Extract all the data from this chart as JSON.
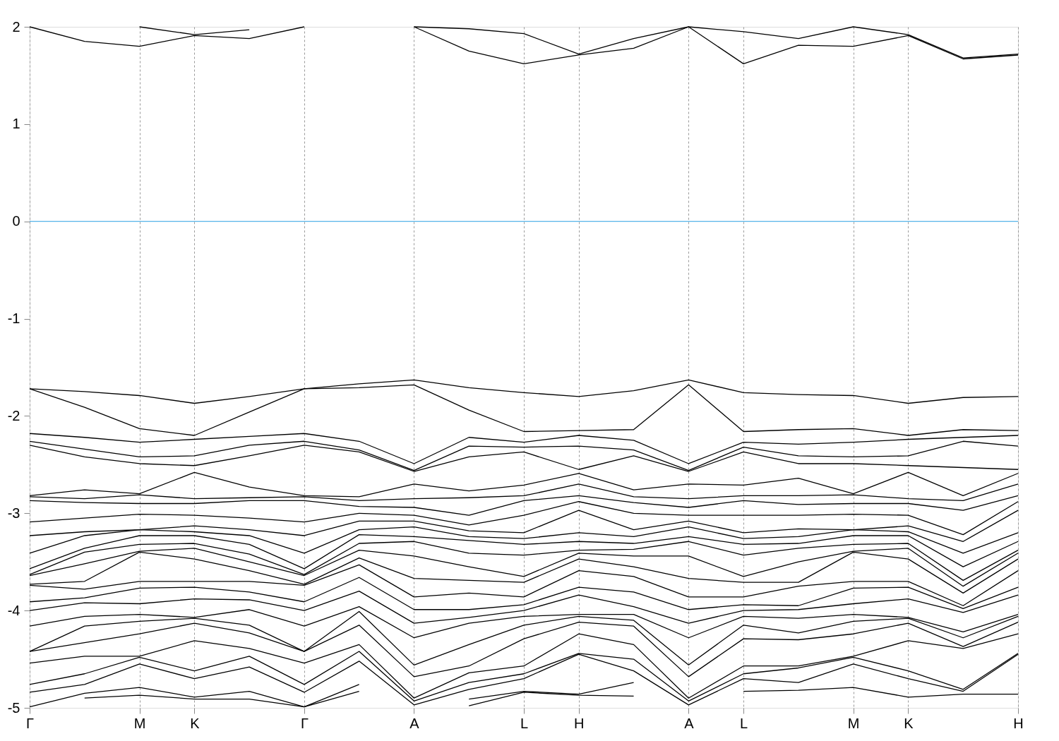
{
  "chart_data": {
    "type": "line",
    "categories": [
      "Γ",
      null,
      "M",
      "K",
      null,
      "Γ",
      null,
      "A",
      null,
      "L",
      "H",
      null,
      "A",
      "L",
      null,
      "M",
      "K",
      null,
      "H"
    ],
    "ylim": [
      -5,
      2
    ],
    "yticks": [
      -5,
      -4,
      -3,
      -2,
      -1,
      0,
      1,
      2
    ],
    "grid": "x",
    "marker": "none",
    "line_style": "solid",
    "legend": false,
    "ref_lines": [
      {
        "axis": "y",
        "value": 0,
        "color": "#56b4e9"
      }
    ],
    "series": [
      {
        "color": "#000000",
        "values": [
          2.0,
          1.85,
          1.8,
          1.91,
          1.88,
          2.0,
          null,
          2.0,
          1.75,
          1.62,
          1.71,
          1.78,
          2.0,
          1.62,
          1.81,
          1.8,
          1.91,
          1.67,
          1.71
        ]
      },
      {
        "color": "#000000",
        "values": [
          null,
          null,
          2.0,
          1.92,
          1.97,
          null,
          null,
          2.0,
          1.98,
          1.93,
          1.72,
          1.88,
          2.0,
          1.95,
          1.88,
          2.0,
          1.92,
          1.68,
          1.72
        ]
      },
      {
        "color": "#000000",
        "values": [
          -1.72,
          -1.75,
          -1.79,
          -1.87,
          -1.8,
          -1.72,
          -1.67,
          -1.63,
          -1.71,
          -1.76,
          -1.8,
          -1.74,
          -1.63,
          -1.76,
          -1.78,
          -1.79,
          -1.87,
          -1.81,
          -1.8
        ]
      },
      {
        "color": "#000000",
        "values": [
          -1.72,
          -1.91,
          -2.13,
          -2.2,
          -1.96,
          -1.72,
          -1.71,
          -1.68,
          -1.94,
          -2.16,
          -2.15,
          -2.14,
          -1.68,
          -2.16,
          -2.14,
          -2.13,
          -2.2,
          -2.14,
          -2.15
        ]
      },
      {
        "color": "#000000",
        "values": [
          -2.18,
          -2.22,
          -2.27,
          -2.24,
          -2.21,
          -2.18,
          -2.26,
          -2.49,
          -2.22,
          -2.27,
          -2.2,
          -2.25,
          -2.49,
          -2.27,
          -2.29,
          -2.27,
          -2.24,
          -2.22,
          -2.2
        ]
      },
      {
        "color": "#000000",
        "values": [
          -2.26,
          -2.34,
          -2.42,
          -2.41,
          -2.3,
          -2.26,
          -2.35,
          -2.56,
          -2.31,
          -2.32,
          -2.31,
          -2.35,
          -2.56,
          -2.32,
          -2.41,
          -2.42,
          -2.41,
          -2.26,
          -2.31
        ]
      },
      {
        "color": "#000000",
        "values": [
          -2.3,
          -2.42,
          -2.49,
          -2.51,
          -2.41,
          -2.3,
          -2.37,
          -2.57,
          -2.42,
          -2.37,
          -2.55,
          -2.41,
          -2.57,
          -2.37,
          -2.49,
          -2.49,
          -2.51,
          -2.53,
          -2.55
        ]
      },
      {
        "color": "#000000",
        "values": [
          -2.82,
          -2.76,
          -2.8,
          -2.58,
          -2.73,
          -2.82,
          -2.83,
          -2.7,
          -2.77,
          -2.71,
          -2.59,
          -2.76,
          -2.7,
          -2.71,
          -2.64,
          -2.8,
          -2.58,
          -2.82,
          -2.59
        ]
      },
      {
        "color": "#000000",
        "values": [
          -2.83,
          -2.85,
          -2.81,
          -2.85,
          -2.84,
          -2.83,
          -2.87,
          -2.85,
          -2.84,
          -2.82,
          -2.7,
          -2.83,
          -2.85,
          -2.82,
          -2.82,
          -2.81,
          -2.85,
          -2.87,
          -2.7
        ]
      },
      {
        "color": "#000000",
        "values": [
          -2.87,
          -2.89,
          -2.9,
          -2.9,
          -2.87,
          -2.87,
          -2.93,
          -2.94,
          -3.02,
          -2.87,
          -2.82,
          -2.89,
          -2.94,
          -2.87,
          -2.91,
          -2.9,
          -2.9,
          -2.97,
          -2.82
        ]
      },
      {
        "color": "#000000",
        "values": [
          -3.09,
          -3.05,
          -3.01,
          -3.02,
          -3.05,
          -3.09,
          -3.0,
          -3.02,
          -3.12,
          -3.02,
          -2.88,
          -3.0,
          -3.02,
          -3.02,
          -3.02,
          -3.01,
          -3.02,
          -3.22,
          -2.88
        ]
      },
      {
        "color": "#000000",
        "values": [
          -3.23,
          -3.19,
          -3.17,
          -3.13,
          -3.17,
          -3.23,
          -3.08,
          -3.08,
          -3.18,
          -3.2,
          -2.97,
          -3.17,
          -3.08,
          -3.2,
          -3.16,
          -3.17,
          -3.13,
          -3.29,
          -2.97
        ]
      },
      {
        "color": "#000000",
        "values": [
          -3.41,
          -3.23,
          -3.17,
          -3.19,
          -3.23,
          -3.41,
          -3.17,
          -3.14,
          -3.24,
          -3.26,
          -3.2,
          -3.24,
          -3.14,
          -3.26,
          -3.24,
          -3.17,
          -3.19,
          -3.41,
          -3.2
        ]
      },
      {
        "color": "#000000",
        "values": [
          -3.57,
          -3.36,
          -3.23,
          -3.23,
          -3.32,
          -3.57,
          -3.22,
          -3.24,
          -3.28,
          -3.32,
          -3.29,
          -3.31,
          -3.24,
          -3.32,
          -3.31,
          -3.23,
          -3.23,
          -3.55,
          -3.29
        ]
      },
      {
        "color": "#000000",
        "values": [
          -3.63,
          -3.4,
          -3.32,
          -3.31,
          -3.42,
          -3.63,
          -3.31,
          -3.29,
          -3.41,
          -3.43,
          -3.38,
          -3.37,
          -3.29,
          -3.43,
          -3.36,
          -3.32,
          -3.31,
          -3.69,
          -3.38
        ]
      },
      {
        "color": "#000000",
        "values": [
          -3.64,
          -3.52,
          -3.39,
          -3.36,
          -3.5,
          -3.64,
          -3.38,
          -3.44,
          -3.55,
          -3.65,
          -3.41,
          -3.44,
          -3.44,
          -3.65,
          -3.5,
          -3.39,
          -3.36,
          -3.75,
          -3.41
        ]
      },
      {
        "color": "#000000",
        "values": [
          -3.73,
          -3.7,
          -3.4,
          -3.47,
          -3.59,
          -3.73,
          -3.46,
          -3.67,
          -3.69,
          -3.71,
          -3.47,
          -3.55,
          -3.67,
          -3.71,
          -3.71,
          -3.4,
          -3.47,
          -3.82,
          -3.47
        ]
      },
      {
        "color": "#000000",
        "values": [
          -3.74,
          -3.78,
          -3.7,
          -3.7,
          -3.7,
          -3.74,
          -3.53,
          -3.86,
          -3.82,
          -3.86,
          -3.59,
          -3.65,
          -3.86,
          -3.86,
          -3.75,
          -3.7,
          -3.7,
          -3.95,
          -3.59
        ]
      },
      {
        "color": "#000000",
        "values": [
          -3.91,
          -3.87,
          -3.77,
          -3.76,
          -3.81,
          -3.91,
          -3.66,
          -3.99,
          -3.99,
          -3.94,
          -3.76,
          -3.81,
          -3.99,
          -3.94,
          -3.95,
          -3.77,
          -3.76,
          -3.98,
          -3.76
        ]
      },
      {
        "color": "#000000",
        "values": [
          -4.0,
          -3.92,
          -3.93,
          -3.88,
          -3.89,
          -4.0,
          -3.8,
          -4.13,
          -4.07,
          -4.0,
          -3.84,
          -3.96,
          -4.13,
          -4.0,
          -3.99,
          -3.93,
          -3.88,
          -4.02,
          -3.84
        ]
      },
      {
        "color": "#000000",
        "values": [
          -4.16,
          -4.06,
          -4.04,
          -4.07,
          -3.99,
          -4.16,
          -3.96,
          -4.28,
          -4.13,
          -4.06,
          -4.04,
          -4.04,
          -4.28,
          -4.06,
          -4.08,
          -4.04,
          -4.07,
          -4.22,
          -4.04
        ]
      },
      {
        "color": "#000000",
        "values": [
          -4.42,
          -4.16,
          -4.11,
          -4.08,
          -4.15,
          -4.42,
          -4.01,
          -4.56,
          -4.35,
          -4.15,
          -4.06,
          -4.1,
          -4.56,
          -4.15,
          -4.23,
          -4.11,
          -4.08,
          -4.28,
          -4.06
        ]
      },
      {
        "color": "#000000",
        "values": [
          -4.42,
          -4.33,
          -4.24,
          -4.13,
          -4.23,
          -4.42,
          -4.15,
          -4.68,
          -4.57,
          -4.29,
          -4.12,
          -4.16,
          -4.68,
          -4.29,
          -4.3,
          -4.24,
          -4.13,
          -4.37,
          -4.12
        ]
      },
      {
        "color": "#000000",
        "values": [
          -4.54,
          -4.47,
          -4.47,
          -4.31,
          -4.39,
          -4.54,
          -4.35,
          -4.9,
          -4.64,
          -4.57,
          -4.24,
          -4.35,
          -4.9,
          -4.57,
          -4.57,
          -4.47,
          -4.31,
          -4.39,
          -4.24
        ]
      },
      {
        "color": "#000000",
        "values": [
          -4.76,
          -4.65,
          -4.48,
          -4.62,
          -4.47,
          -4.76,
          -4.42,
          -4.93,
          -4.74,
          -4.65,
          -4.44,
          -4.5,
          -4.93,
          -4.65,
          -4.59,
          -4.48,
          -4.62,
          -4.81,
          -4.44
        ]
      },
      {
        "color": "#000000",
        "values": [
          -4.84,
          -4.76,
          -4.55,
          -4.7,
          -4.58,
          -4.84,
          -4.52,
          -4.97,
          -4.81,
          -4.7,
          -4.45,
          -4.62,
          -4.97,
          -4.7,
          -4.74,
          -4.55,
          -4.7,
          -4.83,
          -4.45
        ]
      },
      {
        "color": "#000000",
        "values": [
          -4.99,
          -4.85,
          -4.79,
          -4.89,
          -4.83,
          -4.99,
          -4.76,
          null,
          -4.91,
          -4.83,
          -4.86,
          -4.74,
          null,
          -4.83,
          -4.82,
          -4.79,
          -4.89,
          -4.86,
          -4.86
        ]
      },
      {
        "color": "#000000",
        "values": [
          null,
          -4.9,
          -4.87,
          -4.91,
          -4.91,
          -4.99,
          -4.83,
          null,
          -4.98,
          -4.84,
          -4.87,
          -4.88,
          null,
          null,
          null,
          null,
          null,
          null,
          null
        ]
      }
    ]
  }
}
